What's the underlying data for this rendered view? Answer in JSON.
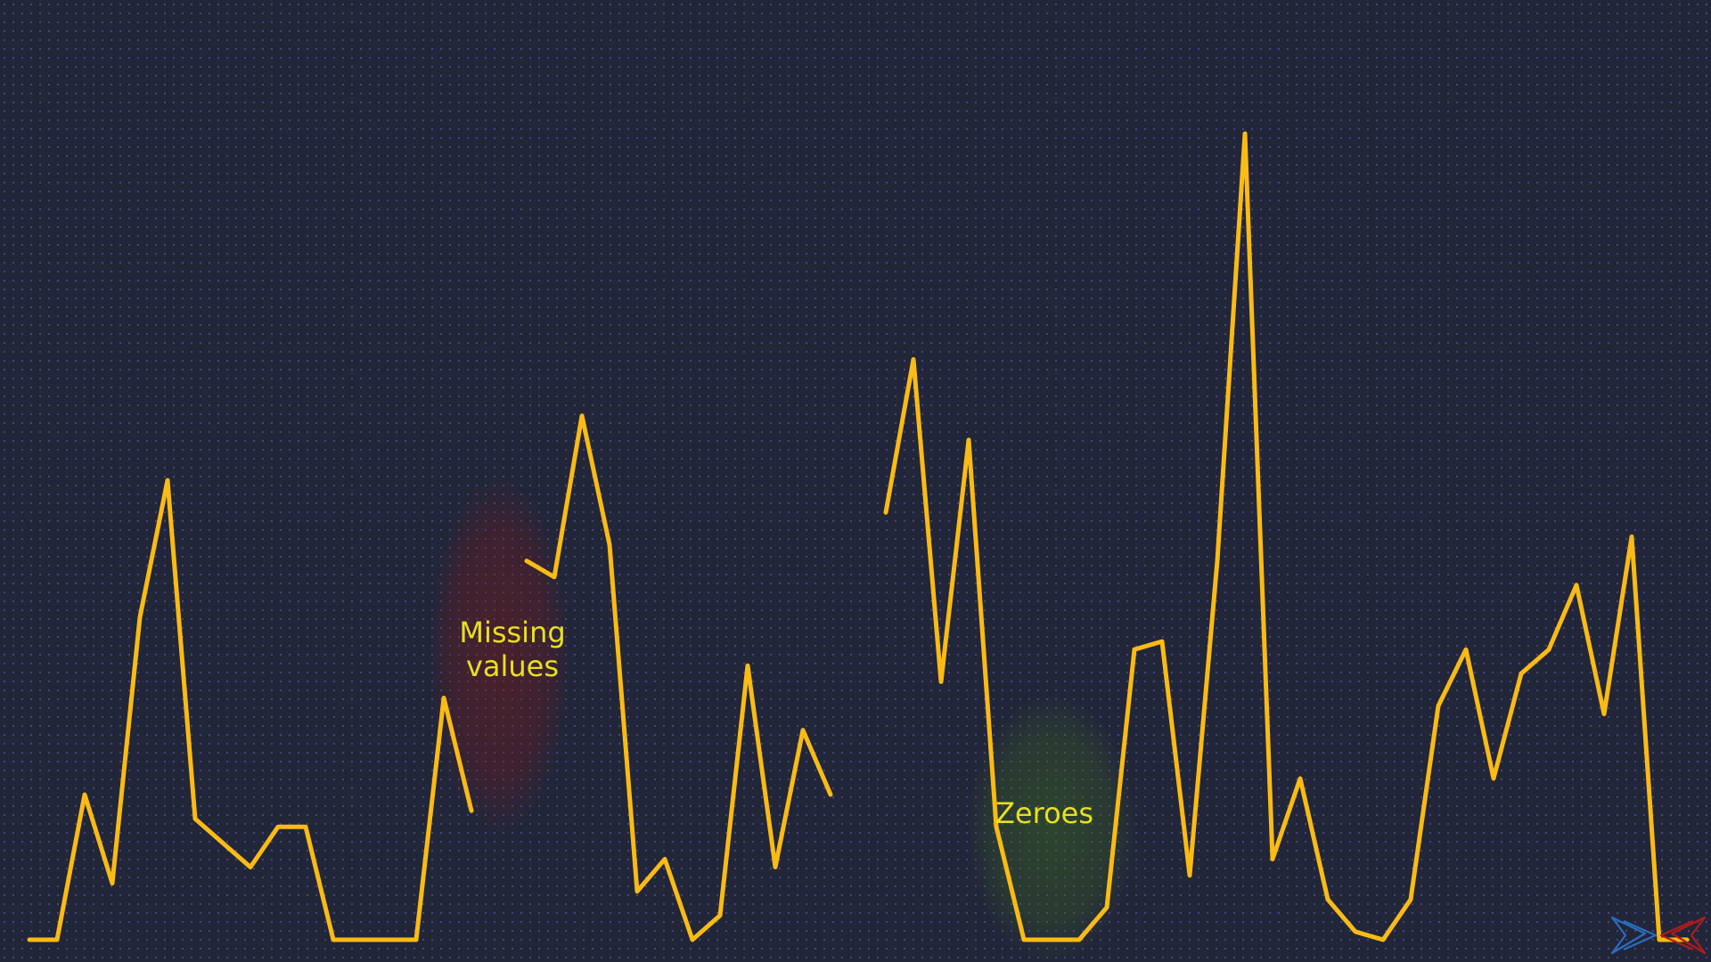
{
  "colors": {
    "background": "#222639",
    "line": "#f9bb14",
    "annotation_text": "#e8e020",
    "missing_highlight": "#7a1a1a",
    "zero_highlight": "#3b6a1e"
  },
  "annotations": {
    "missing": "Missing\nvalues",
    "zeroes": "Zeroes"
  },
  "logo": {
    "icon": "chevron-logo-icon",
    "colors": [
      "#2a6cc0",
      "#b01c1c"
    ]
  },
  "chart_data": {
    "type": "line",
    "title": "",
    "xlabel": "",
    "ylabel": "",
    "axes_visible": false,
    "grid": false,
    "ylim": [
      0,
      100
    ],
    "x": [
      0,
      1,
      2,
      3,
      4,
      5,
      6,
      7,
      8,
      9,
      10,
      11,
      12,
      13,
      14,
      15,
      16,
      17,
      18,
      19,
      20,
      21,
      22,
      23,
      24,
      25,
      26,
      27,
      28,
      29,
      30,
      31,
      32,
      33,
      34,
      35,
      36,
      37,
      38,
      39,
      40,
      41,
      42,
      43,
      44,
      45,
      46,
      47,
      48,
      49,
      50,
      51,
      52,
      53,
      54,
      55,
      56,
      57,
      58,
      59,
      60
    ],
    "series": [
      {
        "name": "",
        "values": [
          0,
          0,
          18,
          7,
          40,
          57,
          15,
          12,
          9,
          14,
          14,
          0,
          0,
          0,
          0,
          30,
          16,
          null,
          47,
          45,
          65,
          49,
          6,
          10,
          0,
          3,
          34,
          9,
          26,
          18,
          null,
          53,
          72,
          32,
          62,
          14,
          0,
          0,
          0,
          4,
          36,
          37,
          8,
          47,
          100,
          10,
          20,
          5,
          1,
          0,
          5,
          29,
          36,
          20,
          33,
          36,
          44,
          28,
          50,
          0,
          0
        ]
      }
    ],
    "highlights": [
      {
        "label": "Missing values",
        "x_range": [
          16,
          18
        ]
      },
      {
        "label": "Zeroes",
        "x_range": [
          36,
          38
        ]
      }
    ]
  }
}
